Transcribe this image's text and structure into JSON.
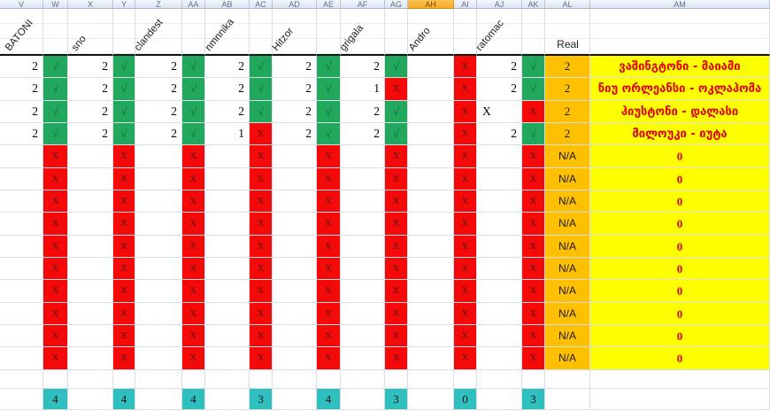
{
  "sheet": {
    "column_letters": [
      "V",
      "W",
      "X",
      "Y",
      "Z",
      "AA",
      "AB",
      "AC",
      "AD",
      "AE",
      "AF",
      "AG",
      "AH",
      "AI",
      "AJ",
      "AK",
      "AL",
      "AM"
    ],
    "selected_column_letter": "AH",
    "players": [
      "BATONI",
      "sno",
      "clandest",
      "nmnnika",
      "Hitzor",
      "grigala",
      "Andro",
      "ratomac"
    ],
    "real_label": "Real",
    "check_glyph": "√",
    "x_glyph": "X",
    "rows": [
      {
        "nums": [
          "2",
          "2",
          "2",
          "2",
          "2",
          "2",
          "",
          "2"
        ],
        "checks": [
          "ok",
          "ok",
          "ok",
          "ok",
          "ok",
          "ok",
          "x",
          "ok"
        ],
        "real": "2",
        "match": "ვაშინგტონი - მაიამი"
      },
      {
        "nums": [
          "2",
          "2",
          "2",
          "2",
          "2",
          "1",
          "",
          "2"
        ],
        "checks": [
          "ok",
          "ok",
          "ok",
          "ok",
          "ok",
          "x",
          "x",
          "ok"
        ],
        "real": "2",
        "match": "ნიუ ორლეანსი - ოკლაჰომა"
      },
      {
        "nums": [
          "2",
          "2",
          "2",
          "2",
          "2",
          "2",
          "",
          "X"
        ],
        "checks": [
          "ok",
          "ok",
          "ok",
          "ok",
          "ok",
          "ok",
          "x",
          "x"
        ],
        "real": "2",
        "match": "ჰიუსტონი - დალასი"
      },
      {
        "nums": [
          "2",
          "2",
          "2",
          "1",
          "2",
          "2",
          "",
          "2"
        ],
        "checks": [
          "ok",
          "ok",
          "ok",
          "x",
          "ok",
          "ok",
          "x",
          "ok"
        ],
        "real": "2",
        "match": "მილოუკი - იუტა"
      },
      {
        "nums": [
          "",
          "",
          "",
          "",
          "",
          "",
          "",
          ""
        ],
        "checks": [
          "x",
          "x",
          "x",
          "x",
          "x",
          "x",
          "x",
          "x"
        ],
        "real": "N/A",
        "match": "0"
      },
      {
        "nums": [
          "",
          "",
          "",
          "",
          "",
          "",
          "",
          ""
        ],
        "checks": [
          "x",
          "x",
          "x",
          "x",
          "x",
          "x",
          "x",
          "x"
        ],
        "real": "N/A",
        "match": "0"
      },
      {
        "nums": [
          "",
          "",
          "",
          "",
          "",
          "",
          "",
          ""
        ],
        "checks": [
          "x",
          "x",
          "x",
          "x",
          "x",
          "x",
          "x",
          "x"
        ],
        "real": "N/A",
        "match": "0"
      },
      {
        "nums": [
          "",
          "",
          "",
          "",
          "",
          "",
          "",
          ""
        ],
        "checks": [
          "x",
          "x",
          "x",
          "x",
          "x",
          "x",
          "x",
          "x"
        ],
        "real": "N/A",
        "match": "0"
      },
      {
        "nums": [
          "",
          "",
          "",
          "",
          "",
          "",
          "",
          ""
        ],
        "checks": [
          "x",
          "x",
          "x",
          "x",
          "x",
          "x",
          "x",
          "x"
        ],
        "real": "N/A",
        "match": "0"
      },
      {
        "nums": [
          "",
          "",
          "",
          "",
          "",
          "",
          "",
          ""
        ],
        "checks": [
          "x",
          "x",
          "x",
          "x",
          "x",
          "x",
          "x",
          "x"
        ],
        "real": "N/A",
        "match": "0"
      },
      {
        "nums": [
          "",
          "",
          "",
          "",
          "",
          "",
          "",
          ""
        ],
        "checks": [
          "x",
          "x",
          "x",
          "x",
          "x",
          "x",
          "x",
          "x"
        ],
        "real": "N/A",
        "match": "0"
      },
      {
        "nums": [
          "",
          "",
          "",
          "",
          "",
          "",
          "",
          ""
        ],
        "checks": [
          "x",
          "x",
          "x",
          "x",
          "x",
          "x",
          "x",
          "x"
        ],
        "real": "N/A",
        "match": "0"
      },
      {
        "nums": [
          "",
          "",
          "",
          "",
          "",
          "",
          "",
          ""
        ],
        "checks": [
          "x",
          "x",
          "x",
          "x",
          "x",
          "x",
          "x",
          "x"
        ],
        "real": "N/A",
        "match": "0"
      },
      {
        "nums": [
          "",
          "",
          "",
          "",
          "",
          "",
          "",
          ""
        ],
        "checks": [
          "x",
          "x",
          "x",
          "x",
          "x",
          "x",
          "x",
          "x"
        ],
        "real": "N/A",
        "match": "0"
      }
    ],
    "totals": [
      "4",
      "4",
      "4",
      "3",
      "4",
      "3",
      "0",
      "3"
    ],
    "colors": {
      "green_fill": "#21a85c",
      "red_fill": "#f50a0a",
      "orange_fill": "#ffc000",
      "yellow_fill": "#ffff00",
      "teal_fill": "#30bfbf",
      "selected_header_fill": "#f8b134",
      "match_text": "#e00000"
    }
  }
}
